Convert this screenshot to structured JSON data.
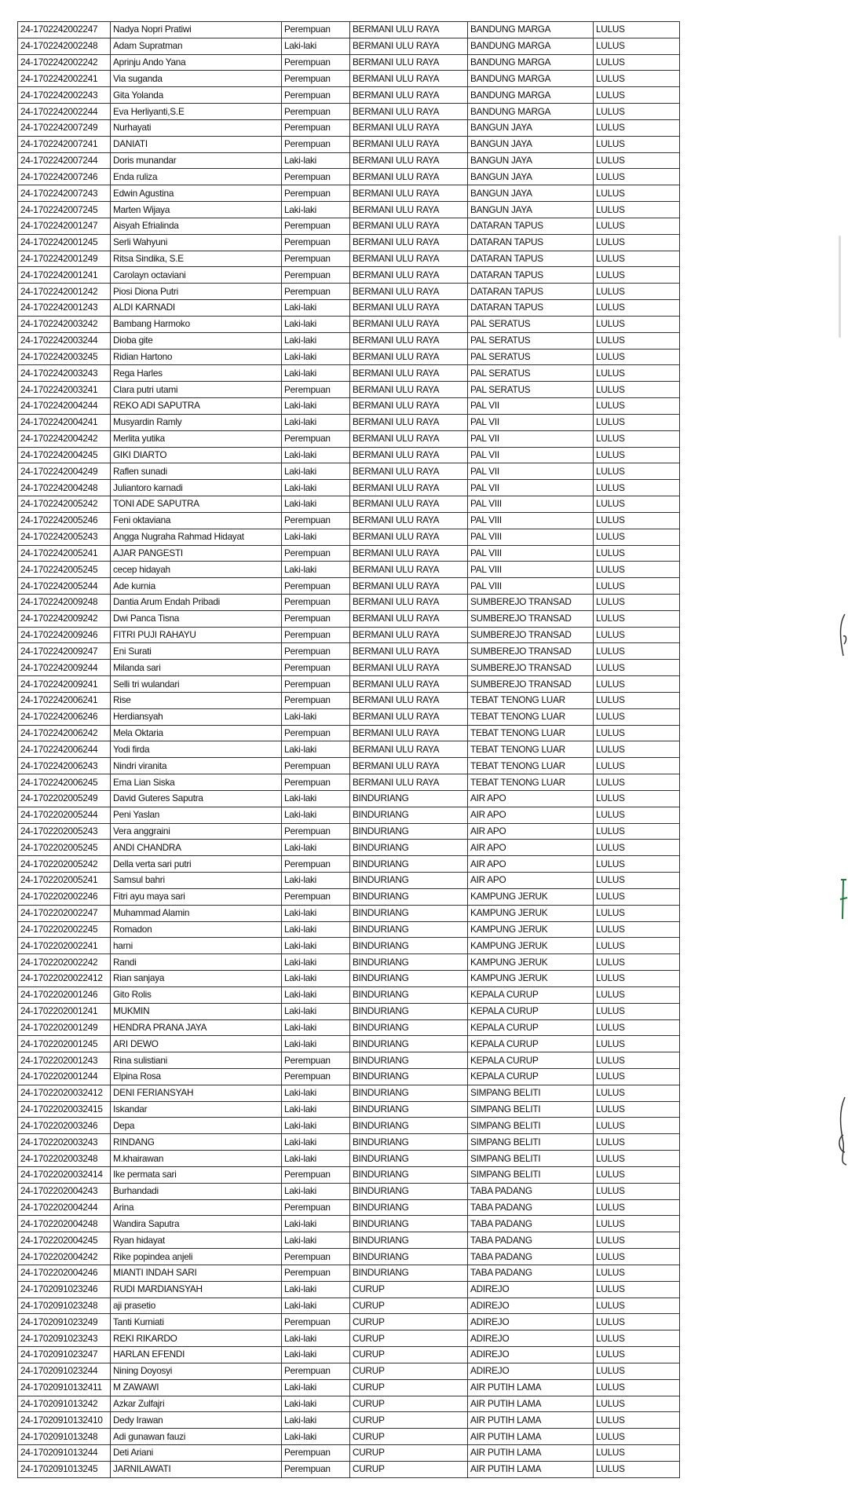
{
  "table": {
    "rows": [
      [
        "24-1702242002247",
        "Nadya Nopri Pratiwi",
        "Perempuan",
        "BERMANI ULU RAYA",
        "BANDUNG MARGA",
        "LULUS"
      ],
      [
        "24-1702242002248",
        "Adam Supratman",
        "Laki-laki",
        "BERMANI ULU RAYA",
        "BANDUNG MARGA",
        "LULUS"
      ],
      [
        "24-1702242002242",
        "Aprinju Ando Yana",
        "Perempuan",
        "BERMANI ULU RAYA",
        "BANDUNG MARGA",
        "LULUS"
      ],
      [
        "24-1702242002241",
        "Via suganda",
        "Perempuan",
        "BERMANI ULU RAYA",
        "BANDUNG MARGA",
        "LULUS"
      ],
      [
        "24-1702242002243",
        "Gita Yolanda",
        "Perempuan",
        "BERMANI ULU RAYA",
        "BANDUNG MARGA",
        "LULUS"
      ],
      [
        "24-1702242002244",
        "Eva Herliyanti,S.E",
        "Perempuan",
        "BERMANI ULU RAYA",
        "BANDUNG MARGA",
        "LULUS"
      ],
      [
        "24-1702242007249",
        "Nurhayati",
        "Perempuan",
        "BERMANI ULU RAYA",
        "BANGUN JAYA",
        "LULUS"
      ],
      [
        "24-1702242007241",
        "DANIATI",
        "Perempuan",
        "BERMANI ULU RAYA",
        "BANGUN JAYA",
        "LULUS"
      ],
      [
        "24-1702242007244",
        "Doris munandar",
        "Laki-laki",
        "BERMANI ULU RAYA",
        "BANGUN JAYA",
        "LULUS"
      ],
      [
        "24-1702242007246",
        "Enda ruliza",
        "Perempuan",
        "BERMANI ULU RAYA",
        "BANGUN JAYA",
        "LULUS"
      ],
      [
        "24-1702242007243",
        "Edwin Agustina",
        "Perempuan",
        "BERMANI ULU RAYA",
        "BANGUN JAYA",
        "LULUS"
      ],
      [
        "24-1702242007245",
        "Marten Wijaya",
        "Laki-laki",
        "BERMANI ULU RAYA",
        "BANGUN JAYA",
        "LULUS"
      ],
      [
        "24-1702242001247",
        "Aisyah Efrialinda",
        "Perempuan",
        "BERMANI ULU RAYA",
        "DATARAN TAPUS",
        "LULUS"
      ],
      [
        "24-1702242001245",
        "Serli Wahyuni",
        "Perempuan",
        "BERMANI ULU RAYA",
        "DATARAN TAPUS",
        "LULUS"
      ],
      [
        "24-1702242001249",
        "Ritsa Sindika, S.E",
        "Perempuan",
        "BERMANI ULU RAYA",
        "DATARAN TAPUS",
        "LULUS"
      ],
      [
        "24-1702242001241",
        "Carolayn octaviani",
        "Perempuan",
        "BERMANI ULU RAYA",
        "DATARAN TAPUS",
        "LULUS"
      ],
      [
        "24-1702242001242",
        "Piosi Diona Putri",
        "Perempuan",
        "BERMANI ULU RAYA",
        "DATARAN TAPUS",
        "LULUS"
      ],
      [
        "24-1702242001243",
        "ALDI KARNADI",
        "Laki-laki",
        "BERMANI ULU RAYA",
        "DATARAN TAPUS",
        "LULUS"
      ],
      [
        "24-1702242003242",
        "Bambang Harmoko",
        "Laki-laki",
        "BERMANI ULU RAYA",
        "PAL SERATUS",
        "LULUS"
      ],
      [
        "24-1702242003244",
        "Dioba gite",
        "Laki-laki",
        "BERMANI ULU RAYA",
        "PAL SERATUS",
        "LULUS"
      ],
      [
        "24-1702242003245",
        "Ridian Hartono",
        "Laki-laki",
        "BERMANI ULU RAYA",
        "PAL SERATUS",
        "LULUS"
      ],
      [
        "24-1702242003243",
        "Rega Harles",
        "Laki-laki",
        "BERMANI ULU RAYA",
        "PAL SERATUS",
        "LULUS"
      ],
      [
        "24-1702242003241",
        "Clara putri utami",
        "Perempuan",
        "BERMANI ULU RAYA",
        "PAL SERATUS",
        "LULUS"
      ],
      [
        "24-1702242004244",
        "REKO ADI SAPUTRA",
        "Laki-laki",
        "BERMANI ULU RAYA",
        "PAL VII",
        "LULUS"
      ],
      [
        "24-1702242004241",
        "Musyardin Ramly",
        "Laki-laki",
        "BERMANI ULU RAYA",
        "PAL VII",
        "LULUS"
      ],
      [
        "24-1702242004242",
        "Merlita yutika",
        "Perempuan",
        "BERMANI ULU RAYA",
        "PAL VII",
        "LULUS"
      ],
      [
        "24-1702242004245",
        "GIKI DIARTO",
        "Laki-laki",
        "BERMANI ULU RAYA",
        "PAL VII",
        "LULUS"
      ],
      [
        "24-1702242004249",
        "Raflen sunadi",
        "Laki-laki",
        "BERMANI ULU RAYA",
        "PAL VII",
        "LULUS"
      ],
      [
        "24-1702242004248",
        "Juliantoro karnadi",
        "Laki-laki",
        "BERMANI ULU RAYA",
        "PAL VII",
        "LULUS"
      ],
      [
        "24-1702242005242",
        "TONI ADE SAPUTRA",
        "Laki-laki",
        "BERMANI ULU RAYA",
        "PAL VIII",
        "LULUS"
      ],
      [
        "24-1702242005246",
        "Feni oktaviana",
        "Perempuan",
        "BERMANI ULU RAYA",
        "PAL VIII",
        "LULUS"
      ],
      [
        "24-1702242005243",
        "Angga Nugraha Rahmad Hidayat",
        "Laki-laki",
        "BERMANI ULU RAYA",
        "PAL VIII",
        "LULUS"
      ],
      [
        "24-1702242005241",
        "AJAR PANGESTI",
        "Perempuan",
        "BERMANI ULU RAYA",
        "PAL VIII",
        "LULUS"
      ],
      [
        "24-1702242005245",
        "cecep hidayah",
        "Laki-laki",
        "BERMANI ULU RAYA",
        "PAL VIII",
        "LULUS"
      ],
      [
        "24-1702242005244",
        "Ade kurnia",
        "Perempuan",
        "BERMANI ULU RAYA",
        "PAL VIII",
        "LULUS"
      ],
      [
        "24-1702242009248",
        "Dantia Arum Endah Pribadi",
        "Perempuan",
        "BERMANI ULU RAYA",
        "SUMBEREJO TRANSAD",
        "LULUS"
      ],
      [
        "24-1702242009242",
        "Dwi Panca Tisna",
        "Perempuan",
        "BERMANI ULU RAYA",
        "SUMBEREJO TRANSAD",
        "LULUS"
      ],
      [
        "24-1702242009246",
        "FITRI PUJI RAHAYU",
        "Perempuan",
        "BERMANI ULU RAYA",
        "SUMBEREJO TRANSAD",
        "LULUS"
      ],
      [
        "24-1702242009247",
        "Eni Surati",
        "Perempuan",
        "BERMANI ULU RAYA",
        "SUMBEREJO TRANSAD",
        "LULUS"
      ],
      [
        "24-1702242009244",
        "Milanda sari",
        "Perempuan",
        "BERMANI ULU RAYA",
        "SUMBEREJO TRANSAD",
        "LULUS"
      ],
      [
        "24-1702242009241",
        "Selli tri wulandari",
        "Perempuan",
        "BERMANI ULU RAYA",
        "SUMBEREJO TRANSAD",
        "LULUS"
      ],
      [
        "24-1702242006241",
        "Rise",
        "Perempuan",
        "BERMANI ULU RAYA",
        "TEBAT TENONG LUAR",
        "LULUS"
      ],
      [
        "24-1702242006246",
        "Herdiansyah",
        "Laki-laki",
        "BERMANI ULU RAYA",
        "TEBAT TENONG LUAR",
        "LULUS"
      ],
      [
        "24-1702242006242",
        "Mela Oktaria",
        "Perempuan",
        "BERMANI ULU RAYA",
        "TEBAT TENONG LUAR",
        "LULUS"
      ],
      [
        "24-1702242006244",
        "Yodi firda",
        "Laki-laki",
        "BERMANI ULU RAYA",
        "TEBAT TENONG LUAR",
        "LULUS"
      ],
      [
        "24-1702242006243",
        "Nindri viranita",
        "Perempuan",
        "BERMANI ULU RAYA",
        "TEBAT TENONG LUAR",
        "LULUS"
      ],
      [
        "24-1702242006245",
        "Ema Lian Siska",
        "Perempuan",
        "BERMANI ULU RAYA",
        "TEBAT TENONG LUAR",
        "LULUS"
      ],
      [
        "24-1702202005249",
        "David Guteres Saputra",
        "Laki-laki",
        "BINDURIANG",
        "AIR APO",
        "LULUS"
      ],
      [
        "24-1702202005244",
        "Peni Yaslan",
        "Laki-laki",
        "BINDURIANG",
        "AIR APO",
        "LULUS"
      ],
      [
        "24-1702202005243",
        "Vera anggraini",
        "Perempuan",
        "BINDURIANG",
        "AIR APO",
        "LULUS"
      ],
      [
        "24-1702202005245",
        "ANDI CHANDRA",
        "Laki-laki",
        "BINDURIANG",
        "AIR APO",
        "LULUS"
      ],
      [
        "24-1702202005242",
        "Della verta sari putri",
        "Perempuan",
        "BINDURIANG",
        "AIR APO",
        "LULUS"
      ],
      [
        "24-1702202005241",
        "Samsul bahri",
        "Laki-laki",
        "BINDURIANG",
        "AIR APO",
        "LULUS"
      ],
      [
        "24-1702202002246",
        "Fitri ayu maya sari",
        "Perempuan",
        "BINDURIANG",
        "KAMPUNG JERUK",
        "LULUS"
      ],
      [
        "24-1702202002247",
        "Muhammad Alamin",
        "Laki-laki",
        "BINDURIANG",
        "KAMPUNG JERUK",
        "LULUS"
      ],
      [
        "24-1702202002245",
        "Romadon",
        "Laki-laki",
        "BINDURIANG",
        "KAMPUNG JERUK",
        "LULUS"
      ],
      [
        "24-1702202002241",
        "harni",
        "Laki-laki",
        "BINDURIANG",
        "KAMPUNG JERUK",
        "LULUS"
      ],
      [
        "24-1702202002242",
        "Randi",
        "Laki-laki",
        "BINDURIANG",
        "KAMPUNG JERUK",
        "LULUS"
      ],
      [
        "24-17022020022412",
        "Rian sanjaya",
        "Laki-laki",
        "BINDURIANG",
        "KAMPUNG JERUK",
        "LULUS"
      ],
      [
        "24-1702202001246",
        "Gito Rolis",
        "Laki-laki",
        "BINDURIANG",
        "KEPALA CURUP",
        "LULUS"
      ],
      [
        "24-1702202001241",
        "MUKMIN",
        "Laki-laki",
        "BINDURIANG",
        "KEPALA CURUP",
        "LULUS"
      ],
      [
        "24-1702202001249",
        "HENDRA PRANA JAYA",
        "Laki-laki",
        "BINDURIANG",
        "KEPALA CURUP",
        "LULUS"
      ],
      [
        "24-1702202001245",
        "ARI DEWO",
        "Laki-laki",
        "BINDURIANG",
        "KEPALA CURUP",
        "LULUS"
      ],
      [
        "24-1702202001243",
        "Rina sulistiani",
        "Perempuan",
        "BINDURIANG",
        "KEPALA CURUP",
        "LULUS"
      ],
      [
        "24-1702202001244",
        "Elpina Rosa",
        "Perempuan",
        "BINDURIANG",
        "KEPALA CURUP",
        "LULUS"
      ],
      [
        "24-17022020032412",
        "DENI FERIANSYAH",
        "Laki-laki",
        "BINDURIANG",
        "SIMPANG BELITI",
        "LULUS"
      ],
      [
        "24-17022020032415",
        "Iskandar",
        "Laki-laki",
        "BINDURIANG",
        "SIMPANG BELITI",
        "LULUS"
      ],
      [
        "24-1702202003246",
        "Depa",
        "Laki-laki",
        "BINDURIANG",
        "SIMPANG BELITI",
        "LULUS"
      ],
      [
        "24-1702202003243",
        "RINDANG",
        "Laki-laki",
        "BINDURIANG",
        "SIMPANG BELITI",
        "LULUS"
      ],
      [
        "24-1702202003248",
        "M.khairawan",
        "Laki-laki",
        "BINDURIANG",
        "SIMPANG BELITI",
        "LULUS"
      ],
      [
        "24-17022020032414",
        "Ike permata sari",
        "Perempuan",
        "BINDURIANG",
        "SIMPANG BELITI",
        "LULUS"
      ],
      [
        "24-1702202004243",
        "Burhandadi",
        "Laki-laki",
        "BINDURIANG",
        "TABA PADANG",
        "LULUS"
      ],
      [
        "24-1702202004244",
        "Arina",
        "Perempuan",
        "BINDURIANG",
        "TABA PADANG",
        "LULUS"
      ],
      [
        "24-1702202004248",
        "Wandira Saputra",
        "Laki-laki",
        "BINDURIANG",
        "TABA PADANG",
        "LULUS"
      ],
      [
        "24-1702202004245",
        "Ryan hidayat",
        "Laki-laki",
        "BINDURIANG",
        "TABA PADANG",
        "LULUS"
      ],
      [
        "24-1702202004242",
        "Rike popindea anjeli",
        "Perempuan",
        "BINDURIANG",
        "TABA PADANG",
        "LULUS"
      ],
      [
        "24-1702202004246",
        "MIANTI INDAH SARI",
        "Perempuan",
        "BINDURIANG",
        "TABA PADANG",
        "LULUS"
      ],
      [
        "24-1702091023246",
        "RUDI MARDIANSYAH",
        "Laki-laki",
        "CURUP",
        "ADIREJO",
        "LULUS"
      ],
      [
        "24-1702091023248",
        "aji prasetio",
        "Laki-laki",
        "CURUP",
        "ADIREJO",
        "LULUS"
      ],
      [
        "24-1702091023249",
        "Tanti Kurniati",
        "Perempuan",
        "CURUP",
        "ADIREJO",
        "LULUS"
      ],
      [
        "24-1702091023243",
        "REKI RIKARDO",
        "Laki-laki",
        "CURUP",
        "ADIREJO",
        "LULUS"
      ],
      [
        "24-1702091023247",
        "HARLAN EFENDI",
        "Laki-laki",
        "CURUP",
        "ADIREJO",
        "LULUS"
      ],
      [
        "24-1702091023244",
        "Nining Doyosyi",
        "Perempuan",
        "CURUP",
        "ADIREJO",
        "LULUS"
      ],
      [
        "24-17020910132411",
        "M ZAWAWI",
        "Laki-laki",
        "CURUP",
        "AIR PUTIH LAMA",
        "LULUS"
      ],
      [
        "24-1702091013242",
        "Azkar Zulfajri",
        "Laki-laki",
        "CURUP",
        "AIR PUTIH LAMA",
        "LULUS"
      ],
      [
        "24-17020910132410",
        "Dedy Irawan",
        "Laki-laki",
        "CURUP",
        "AIR PUTIH LAMA",
        "LULUS"
      ],
      [
        "24-1702091013248",
        "Adi gunawan fauzi",
        "Laki-laki",
        "CURUP",
        "AIR PUTIH LAMA",
        "LULUS"
      ],
      [
        "24-1702091013244",
        "Deti Ariani",
        "Perempuan",
        "CURUP",
        "AIR PUTIH LAMA",
        "LULUS"
      ],
      [
        "24-1702091013245",
        "JARNILAWATI",
        "Perempuan",
        "CURUP",
        "AIR PUTIH LAMA",
        "LULUS"
      ]
    ]
  },
  "colors": {
    "border": "#333333",
    "text": "#111111",
    "handwriting": "#1f7a3e"
  },
  "icons": [
    "handwritten-signature-mark"
  ]
}
